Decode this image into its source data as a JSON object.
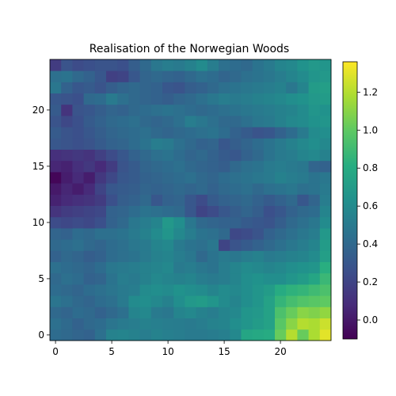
{
  "chart_data": {
    "type": "heatmap",
    "title": "Realisation of the Norwegian Woods",
    "xlabel": "",
    "ylabel": "",
    "grid": false,
    "colormap": "viridis",
    "origin": "lower",
    "xlim": [
      -0.5,
      24.5
    ],
    "ylim": [
      -0.5,
      24.5
    ],
    "xticks": [
      0,
      5,
      10,
      15,
      20
    ],
    "yticks": [
      0,
      5,
      10,
      15,
      20
    ],
    "colorbar": {
      "range": [
        -0.1,
        1.36
      ],
      "ticks": [
        0.0,
        0.2,
        0.4,
        0.6,
        0.8,
        1.0,
        1.2
      ]
    },
    "values": [
      [
        0.42,
        0.4,
        0.38,
        0.36,
        0.44,
        0.55,
        0.56,
        0.54,
        0.52,
        0.55,
        0.53,
        0.52,
        0.5,
        0.5,
        0.51,
        0.53,
        0.58,
        0.76,
        0.78,
        0.8,
        1.02,
        1.2,
        1.02,
        1.18,
        1.3
      ],
      [
        0.44,
        0.41,
        0.36,
        0.4,
        0.42,
        0.47,
        0.5,
        0.52,
        0.54,
        0.53,
        0.52,
        0.51,
        0.5,
        0.52,
        0.55,
        0.56,
        0.62,
        0.66,
        0.7,
        0.74,
        0.98,
        1.1,
        1.2,
        1.18,
        1.25
      ],
      [
        0.4,
        0.38,
        0.42,
        0.4,
        0.36,
        0.4,
        0.44,
        0.56,
        0.58,
        0.5,
        0.48,
        0.56,
        0.58,
        0.54,
        0.52,
        0.56,
        0.58,
        0.66,
        0.68,
        0.74,
        0.94,
        1.02,
        1.1,
        1.08,
        1.12
      ],
      [
        0.47,
        0.44,
        0.4,
        0.38,
        0.42,
        0.44,
        0.5,
        0.6,
        0.62,
        0.58,
        0.54,
        0.62,
        0.68,
        0.7,
        0.66,
        0.6,
        0.56,
        0.62,
        0.66,
        0.74,
        0.86,
        0.92,
        0.96,
        0.98,
        1.0
      ],
      [
        0.42,
        0.4,
        0.38,
        0.42,
        0.44,
        0.47,
        0.5,
        0.52,
        0.6,
        0.62,
        0.6,
        0.64,
        0.62,
        0.6,
        0.56,
        0.6,
        0.58,
        0.62,
        0.66,
        0.7,
        0.8,
        0.84,
        0.86,
        0.9,
        0.94
      ],
      [
        0.4,
        0.44,
        0.42,
        0.36,
        0.38,
        0.46,
        0.52,
        0.5,
        0.54,
        0.58,
        0.56,
        0.54,
        0.56,
        0.52,
        0.5,
        0.52,
        0.56,
        0.62,
        0.64,
        0.62,
        0.62,
        0.66,
        0.7,
        0.76,
        0.88
      ],
      [
        0.44,
        0.42,
        0.4,
        0.38,
        0.42,
        0.48,
        0.5,
        0.52,
        0.54,
        0.56,
        0.58,
        0.5,
        0.52,
        0.48,
        0.46,
        0.52,
        0.56,
        0.6,
        0.58,
        0.56,
        0.58,
        0.62,
        0.64,
        0.66,
        0.82
      ],
      [
        0.36,
        0.4,
        0.38,
        0.34,
        0.36,
        0.42,
        0.44,
        0.46,
        0.5,
        0.54,
        0.56,
        0.52,
        0.48,
        0.4,
        0.46,
        0.5,
        0.48,
        0.52,
        0.54,
        0.5,
        0.52,
        0.54,
        0.56,
        0.6,
        0.72
      ],
      [
        0.4,
        0.42,
        0.44,
        0.4,
        0.38,
        0.42,
        0.44,
        0.48,
        0.5,
        0.56,
        0.58,
        0.5,
        0.46,
        0.44,
        0.48,
        0.2,
        0.28,
        0.32,
        0.36,
        0.4,
        0.44,
        0.48,
        0.52,
        0.56,
        0.7
      ],
      [
        0.38,
        0.36,
        0.42,
        0.4,
        0.44,
        0.44,
        0.46,
        0.5,
        0.54,
        0.6,
        0.66,
        0.58,
        0.52,
        0.46,
        0.44,
        0.4,
        0.22,
        0.24,
        0.28,
        0.36,
        0.4,
        0.44,
        0.48,
        0.52,
        0.68
      ],
      [
        0.24,
        0.22,
        0.24,
        0.22,
        0.26,
        0.36,
        0.4,
        0.48,
        0.52,
        0.56,
        0.68,
        0.62,
        0.48,
        0.4,
        0.38,
        0.36,
        0.36,
        0.32,
        0.3,
        0.28,
        0.34,
        0.4,
        0.44,
        0.48,
        0.6
      ],
      [
        0.12,
        0.16,
        0.18,
        0.2,
        0.22,
        0.36,
        0.38,
        0.42,
        0.46,
        0.44,
        0.42,
        0.4,
        0.3,
        0.2,
        0.24,
        0.3,
        0.34,
        0.38,
        0.34,
        0.26,
        0.3,
        0.36,
        0.4,
        0.42,
        0.56
      ],
      [
        0.04,
        0.08,
        0.1,
        0.12,
        0.16,
        0.26,
        0.34,
        0.36,
        0.4,
        0.3,
        0.36,
        0.38,
        0.3,
        0.24,
        0.32,
        0.36,
        0.38,
        0.4,
        0.36,
        0.32,
        0.36,
        0.4,
        0.3,
        0.38,
        0.52
      ],
      [
        0.0,
        0.06,
        0.02,
        0.08,
        0.2,
        0.3,
        0.32,
        0.34,
        0.38,
        0.36,
        0.38,
        0.4,
        0.38,
        0.4,
        0.36,
        0.4,
        0.42,
        0.44,
        0.4,
        0.44,
        0.46,
        0.48,
        0.44,
        0.46,
        0.5
      ],
      [
        -0.08,
        0.02,
        0.08,
        0.02,
        0.14,
        0.22,
        0.3,
        0.32,
        0.36,
        0.38,
        0.4,
        0.42,
        0.44,
        0.4,
        0.38,
        0.42,
        0.44,
        0.46,
        0.48,
        0.5,
        0.54,
        0.52,
        0.5,
        0.46,
        0.48
      ],
      [
        0.06,
        0.04,
        0.1,
        0.14,
        0.08,
        0.16,
        0.28,
        0.32,
        0.38,
        0.4,
        0.42,
        0.44,
        0.4,
        0.38,
        0.36,
        0.34,
        0.4,
        0.44,
        0.46,
        0.5,
        0.52,
        0.5,
        0.48,
        0.38,
        0.36
      ],
      [
        0.1,
        0.12,
        0.14,
        0.12,
        0.18,
        0.24,
        0.3,
        0.36,
        0.4,
        0.44,
        0.46,
        0.42,
        0.38,
        0.4,
        0.36,
        0.32,
        0.3,
        0.36,
        0.4,
        0.46,
        0.5,
        0.52,
        0.56,
        0.58,
        0.54
      ],
      [
        0.3,
        0.28,
        0.26,
        0.28,
        0.32,
        0.36,
        0.38,
        0.42,
        0.46,
        0.52,
        0.5,
        0.44,
        0.4,
        0.36,
        0.38,
        0.3,
        0.34,
        0.38,
        0.42,
        0.46,
        0.5,
        0.54,
        0.58,
        0.62,
        0.58
      ],
      [
        0.32,
        0.28,
        0.26,
        0.3,
        0.34,
        0.38,
        0.4,
        0.42,
        0.44,
        0.4,
        0.38,
        0.4,
        0.42,
        0.44,
        0.46,
        0.42,
        0.36,
        0.32,
        0.28,
        0.3,
        0.36,
        0.42,
        0.5,
        0.6,
        0.62
      ],
      [
        0.28,
        0.22,
        0.26,
        0.32,
        0.36,
        0.4,
        0.42,
        0.44,
        0.4,
        0.38,
        0.4,
        0.44,
        0.52,
        0.48,
        0.44,
        0.4,
        0.4,
        0.44,
        0.48,
        0.5,
        0.54,
        0.58,
        0.6,
        0.64,
        0.66
      ],
      [
        0.32,
        0.12,
        0.28,
        0.3,
        0.34,
        0.38,
        0.36,
        0.4,
        0.42,
        0.44,
        0.46,
        0.44,
        0.42,
        0.4,
        0.42,
        0.44,
        0.46,
        0.48,
        0.5,
        0.52,
        0.54,
        0.56,
        0.6,
        0.66,
        0.64
      ],
      [
        0.3,
        0.28,
        0.26,
        0.4,
        0.42,
        0.5,
        0.44,
        0.4,
        0.38,
        0.36,
        0.34,
        0.38,
        0.4,
        0.44,
        0.48,
        0.52,
        0.5,
        0.52,
        0.54,
        0.56,
        0.58,
        0.62,
        0.64,
        0.68,
        0.7
      ],
      [
        0.48,
        0.36,
        0.3,
        0.32,
        0.28,
        0.34,
        0.38,
        0.4,
        0.38,
        0.36,
        0.3,
        0.28,
        0.34,
        0.36,
        0.4,
        0.44,
        0.46,
        0.48,
        0.5,
        0.52,
        0.54,
        0.48,
        0.56,
        0.7,
        0.72
      ],
      [
        0.44,
        0.46,
        0.4,
        0.36,
        0.3,
        0.18,
        0.2,
        0.3,
        0.38,
        0.4,
        0.38,
        0.36,
        0.4,
        0.44,
        0.42,
        0.38,
        0.4,
        0.44,
        0.46,
        0.48,
        0.52,
        0.56,
        0.6,
        0.66,
        0.68
      ],
      [
        0.16,
        0.28,
        0.24,
        0.26,
        0.28,
        0.28,
        0.26,
        0.34,
        0.4,
        0.48,
        0.52,
        0.5,
        0.54,
        0.6,
        0.52,
        0.44,
        0.42,
        0.4,
        0.46,
        0.5,
        0.56,
        0.58,
        0.64,
        0.68,
        0.66
      ]
    ]
  }
}
